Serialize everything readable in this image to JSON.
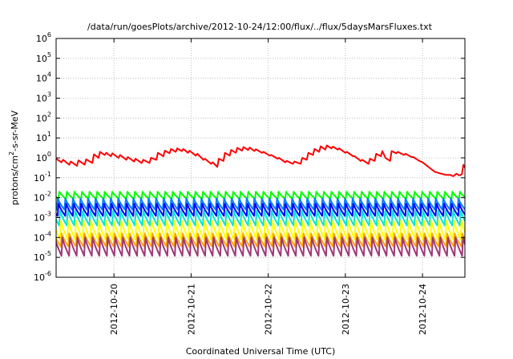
{
  "chart_data": {
    "type": "line",
    "title": "/data/run/goesPlots/archive/2012-10-24/12:00/flux/../flux/5daysMarsFluxes.txt",
    "xlabel": "Coordinated Universal Time (UTC)",
    "ylabel": "protons/cm²-s-sr-MeV",
    "x_range_days": [
      19.25,
      24.55
    ],
    "x_ticks": [
      {
        "x": 20,
        "label": "2012-10-20"
      },
      {
        "x": 21,
        "label": "2012-10-21"
      },
      {
        "x": 22,
        "label": "2012-10-22"
      },
      {
        "x": 23,
        "label": "2012-10-23"
      },
      {
        "x": 24,
        "label": "2012-10-24"
      }
    ],
    "y_scale": "log",
    "y_exponent_range": [
      -6,
      6
    ],
    "y_ticks": [
      {
        "exp": 6,
        "label": "10",
        "sup": "6"
      },
      {
        "exp": 5,
        "label": "10",
        "sup": "5"
      },
      {
        "exp": 4,
        "label": "10",
        "sup": "4"
      },
      {
        "exp": 3,
        "label": "10",
        "sup": "3"
      },
      {
        "exp": 2,
        "label": "10",
        "sup": "2"
      },
      {
        "exp": 1,
        "label": "10",
        "sup": "1"
      },
      {
        "exp": 0,
        "label": "10",
        "sup": "0"
      },
      {
        "exp": -1,
        "label": "10",
        "sup": "-1"
      },
      {
        "exp": -2,
        "label": "10",
        "sup": "-2"
      },
      {
        "exp": -3,
        "label": "10",
        "sup": "-3"
      },
      {
        "exp": -4,
        "label": "10",
        "sup": "-4"
      },
      {
        "exp": -5,
        "label": "10",
        "sup": "-5"
      },
      {
        "exp": -6,
        "label": "10",
        "sup": "-6"
      }
    ],
    "grid": true,
    "series": [
      {
        "color": "#ff0000",
        "values": [
          [
            19.25,
            0.9
          ],
          [
            19.32,
            0.6
          ],
          [
            19.34,
            0.8
          ],
          [
            19.42,
            0.45
          ],
          [
            19.44,
            0.65
          ],
          [
            19.52,
            0.4
          ],
          [
            19.54,
            0.75
          ],
          [
            19.62,
            0.45
          ],
          [
            19.64,
            0.85
          ],
          [
            19.72,
            0.55
          ],
          [
            19.74,
            1.5
          ],
          [
            19.8,
            1.0
          ],
          [
            19.82,
            2.0
          ],
          [
            19.88,
            1.4
          ],
          [
            19.9,
            1.8
          ],
          [
            19.96,
            1.2
          ],
          [
            19.98,
            1.7
          ],
          [
            20.06,
            1.0
          ],
          [
            20.08,
            1.4
          ],
          [
            20.16,
            0.8
          ],
          [
            20.18,
            1.1
          ],
          [
            20.26,
            0.65
          ],
          [
            20.28,
            0.9
          ],
          [
            20.36,
            0.55
          ],
          [
            20.38,
            0.8
          ],
          [
            20.46,
            0.55
          ],
          [
            20.48,
            1.0
          ],
          [
            20.55,
            0.8
          ],
          [
            20.57,
            1.8
          ],
          [
            20.64,
            1.2
          ],
          [
            20.66,
            2.3
          ],
          [
            20.72,
            1.7
          ],
          [
            20.74,
            2.8
          ],
          [
            20.8,
            2.0
          ],
          [
            20.82,
            3.0
          ],
          [
            20.88,
            2.2
          ],
          [
            20.9,
            2.8
          ],
          [
            20.96,
            1.8
          ],
          [
            20.98,
            2.3
          ],
          [
            21.06,
            1.3
          ],
          [
            21.08,
            1.6
          ],
          [
            21.16,
            0.8
          ],
          [
            21.18,
            0.9
          ],
          [
            21.26,
            0.5
          ],
          [
            21.28,
            0.6
          ],
          [
            21.34,
            0.35
          ],
          [
            21.36,
            0.9
          ],
          [
            21.42,
            0.7
          ],
          [
            21.44,
            1.8
          ],
          [
            21.5,
            1.3
          ],
          [
            21.52,
            2.5
          ],
          [
            21.58,
            1.8
          ],
          [
            21.6,
            3.2
          ],
          [
            21.66,
            2.3
          ],
          [
            21.68,
            3.5
          ],
          [
            21.74,
            2.5
          ],
          [
            21.76,
            3.3
          ],
          [
            21.82,
            2.2
          ],
          [
            21.84,
            2.7
          ],
          [
            21.92,
            1.8
          ],
          [
            21.94,
            2.0
          ],
          [
            22.02,
            1.3
          ],
          [
            22.04,
            1.4
          ],
          [
            22.12,
            0.9
          ],
          [
            22.14,
            1.0
          ],
          [
            22.22,
            0.6
          ],
          [
            22.24,
            0.7
          ],
          [
            22.32,
            0.5
          ],
          [
            22.34,
            0.65
          ],
          [
            22.42,
            0.5
          ],
          [
            22.44,
            1.0
          ],
          [
            22.5,
            0.8
          ],
          [
            22.52,
            1.8
          ],
          [
            22.58,
            1.4
          ],
          [
            22.6,
            2.8
          ],
          [
            22.66,
            2.0
          ],
          [
            22.68,
            3.8
          ],
          [
            22.74,
            2.6
          ],
          [
            22.76,
            4.2
          ],
          [
            22.82,
            3.0
          ],
          [
            22.84,
            3.7
          ],
          [
            22.9,
            2.6
          ],
          [
            22.92,
            3.0
          ],
          [
            23.0,
            1.8
          ],
          [
            23.02,
            2.0
          ],
          [
            23.1,
            1.2
          ],
          [
            23.12,
            1.2
          ],
          [
            23.2,
            0.7
          ],
          [
            23.22,
            0.8
          ],
          [
            23.3,
            0.5
          ],
          [
            23.32,
            0.9
          ],
          [
            23.38,
            0.7
          ],
          [
            23.4,
            1.6
          ],
          [
            23.46,
            1.2
          ],
          [
            23.48,
            2.2
          ],
          [
            23.52,
            1.0
          ],
          [
            23.58,
            0.7
          ],
          [
            23.6,
            2.2
          ],
          [
            23.66,
            1.7
          ],
          [
            23.68,
            2.0
          ],
          [
            23.76,
            1.4
          ],
          [
            23.78,
            1.6
          ],
          [
            23.86,
            1.1
          ],
          [
            23.88,
            1.1
          ],
          [
            23.96,
            0.7
          ],
          [
            24.0,
            0.6
          ],
          [
            24.06,
            0.4
          ],
          [
            24.1,
            0.3
          ],
          [
            24.16,
            0.2
          ],
          [
            24.22,
            0.17
          ],
          [
            24.3,
            0.14
          ],
          [
            24.36,
            0.14
          ],
          [
            24.4,
            0.12
          ],
          [
            24.44,
            0.16
          ],
          [
            24.48,
            0.13
          ],
          [
            24.51,
            0.15
          ],
          [
            24.53,
            0.45
          ],
          [
            24.55,
            0.32
          ]
        ]
      },
      {
        "color": "#00ff00",
        "sawtooth": {
          "x_start": 19.28,
          "period": 0.098,
          "peak": 0.02,
          "trough": 0.0085
        }
      },
      {
        "color": "#0080ff",
        "sawtooth": {
          "x_start": 19.26,
          "period": 0.098,
          "peak": 0.009,
          "trough": 0.0025
        }
      },
      {
        "color": "#0000ff",
        "sawtooth": {
          "x_start": 19.27,
          "period": 0.098,
          "peak": 0.005,
          "trough": 0.0012
        }
      },
      {
        "color": "#00e6d2",
        "sawtooth": {
          "x_start": 19.29,
          "period": 0.098,
          "peak": 0.0022,
          "trough": 0.0004
        }
      },
      {
        "color": "#ffff00",
        "sawtooth": {
          "x_start": 19.3,
          "period": 0.098,
          "peak": 0.0007,
          "trough": 8e-05
        }
      },
      {
        "color": "#ffa500",
        "sawtooth": {
          "x_start": 19.31,
          "period": 0.098,
          "peak": 0.00016,
          "trough": 3.5e-05
        }
      },
      {
        "color": "#a03878",
        "sawtooth": {
          "x_start": 19.32,
          "period": 0.098,
          "peak": 0.0001,
          "trough": 1.2e-05
        }
      }
    ]
  }
}
